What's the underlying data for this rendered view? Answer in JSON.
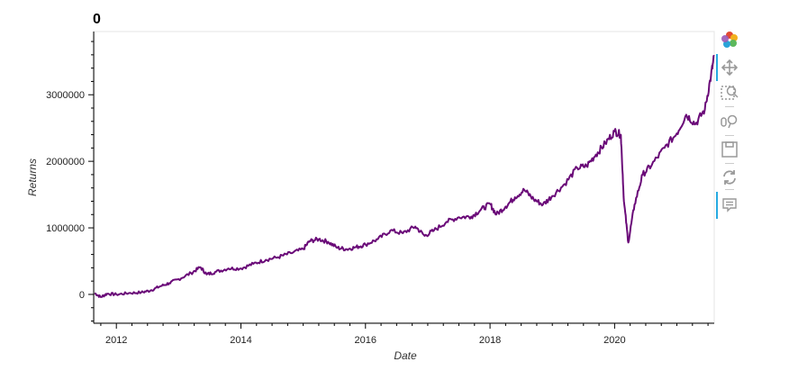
{
  "chart_data": {
    "type": "line",
    "title": "0",
    "xlabel": "Date",
    "ylabel": "Returns",
    "xlim": [
      2011.65,
      2021.6
    ],
    "ylim": [
      -420000,
      3950000
    ],
    "x_ticks": [
      2012,
      2014,
      2016,
      2018,
      2020
    ],
    "y_ticks": [
      0,
      1000000,
      2000000,
      3000000
    ],
    "y_tick_labels": [
      "0",
      "1000000",
      "2000000",
      "3000000"
    ],
    "line_color": "#6a0a78",
    "grid": false,
    "series": [
      {
        "x": [
          2011.65,
          2011.75,
          2011.85,
          2012.0,
          2012.2,
          2012.4,
          2012.55,
          2012.7,
          2012.85,
          2013.0,
          2013.2,
          2013.35,
          2013.45,
          2013.6,
          2013.8,
          2014.0,
          2014.2,
          2014.4,
          2014.6,
          2014.8,
          2015.0,
          2015.1,
          2015.25,
          2015.4,
          2015.55,
          2015.7,
          2015.85,
          2016.0,
          2016.2,
          2016.4,
          2016.6,
          2016.8,
          2016.95,
          2017.1,
          2017.3,
          2017.5,
          2017.7,
          2017.85,
          2018.0,
          2018.1,
          2018.25,
          2018.4,
          2018.55,
          2018.7,
          2018.85,
          2019.0,
          2019.2,
          2019.4,
          2019.55,
          2019.7,
          2019.85,
          2020.0,
          2020.1,
          2020.15,
          2020.22,
          2020.32,
          2020.45,
          2020.6,
          2020.8,
          2021.0,
          2021.15,
          2021.3,
          2021.45,
          2021.55,
          2021.6
        ],
        "y": [
          20000,
          -40000,
          10000,
          0,
          20000,
          30000,
          60000,
          120000,
          170000,
          230000,
          320000,
          410000,
          300000,
          340000,
          390000,
          390000,
          460000,
          520000,
          560000,
          620000,
          680000,
          800000,
          830000,
          790000,
          700000,
          680000,
          710000,
          750000,
          830000,
          960000,
          920000,
          1020000,
          880000,
          960000,
          1090000,
          1160000,
          1170000,
          1270000,
          1360000,
          1200000,
          1320000,
          1460000,
          1570000,
          1430000,
          1350000,
          1480000,
          1660000,
          1900000,
          1930000,
          2100000,
          2270000,
          2450000,
          2400000,
          1400000,
          780000,
          1350000,
          1800000,
          1950000,
          2200000,
          2420000,
          2700000,
          2560000,
          2780000,
          3300000,
          3580000
        ]
      }
    ]
  },
  "toolbar": {
    "tools": [
      "bokeh-logo-icon",
      "pan-icon",
      "box-zoom-icon",
      "wheel-zoom-icon",
      "save-icon",
      "reset-icon",
      "hover-icon"
    ]
  }
}
